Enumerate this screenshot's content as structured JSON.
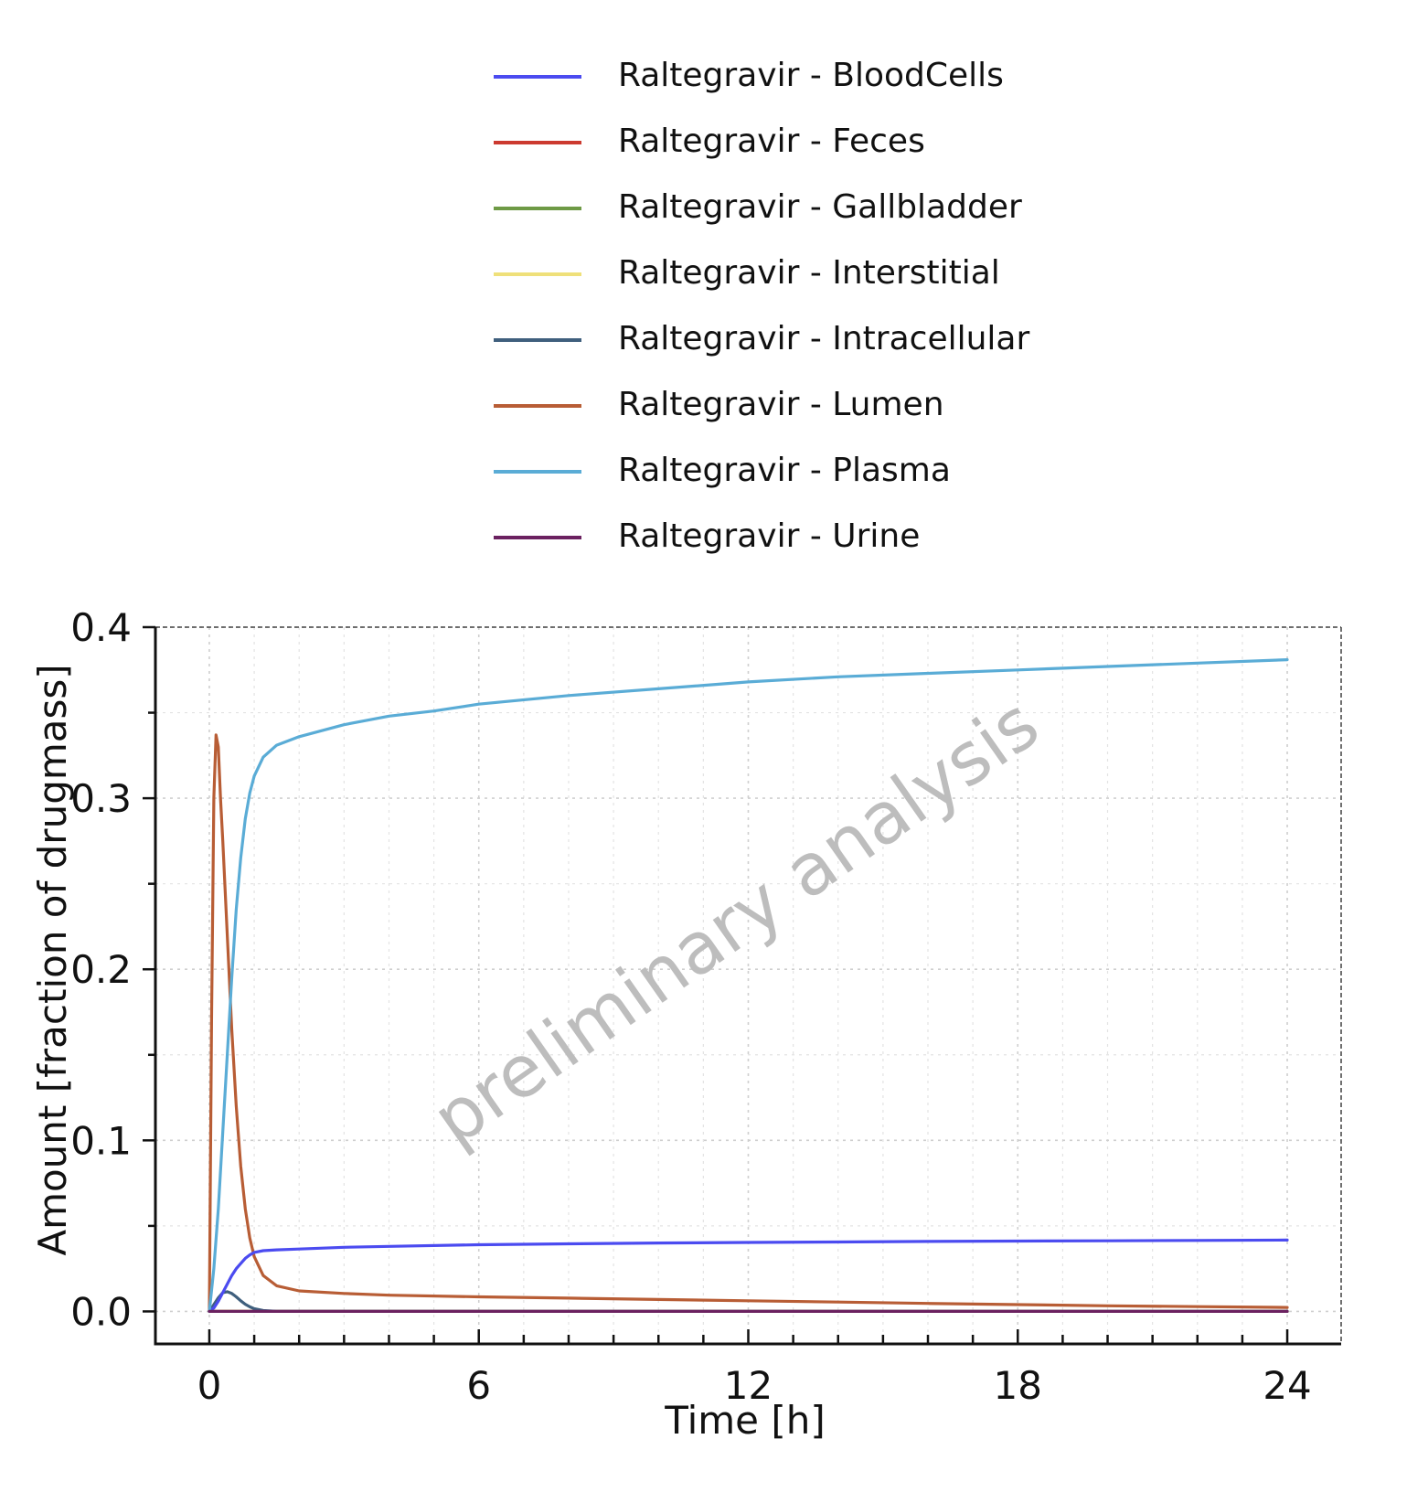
{
  "watermark": "preliminary analysis",
  "chart_data": {
    "type": "line",
    "xlabel": "Time [h]",
    "ylabel": "Amount [fraction of drugmass]",
    "xlim": [
      -1.2,
      25.2
    ],
    "ylim": [
      -0.019,
      0.4
    ],
    "xticks": [
      0,
      6,
      12,
      18,
      24
    ],
    "yticks": [
      0.0,
      0.1,
      0.2,
      0.3,
      0.4
    ],
    "grid": true,
    "legend_position": "top",
    "series": [
      {
        "name": "Raltegravir - BloodCells",
        "color": "#4b4bf0",
        "x": [
          0,
          0.1,
          0.2,
          0.3,
          0.4,
          0.5,
          0.6,
          0.7,
          0.8,
          0.9,
          1.0,
          1.2,
          1.5,
          2,
          3,
          4,
          6,
          8,
          10,
          12,
          14,
          16,
          18,
          20,
          22,
          24
        ],
        "y": [
          0,
          0.002,
          0.006,
          0.011,
          0.016,
          0.021,
          0.025,
          0.028,
          0.031,
          0.033,
          0.0345,
          0.0355,
          0.036,
          0.0365,
          0.0375,
          0.038,
          0.039,
          0.0395,
          0.04,
          0.0403,
          0.0406,
          0.0409,
          0.0411,
          0.0413,
          0.0415,
          0.0417
        ]
      },
      {
        "name": "Raltegravir - Feces",
        "color": "#cc3a30",
        "x": [
          0,
          24
        ],
        "y": [
          0,
          0
        ]
      },
      {
        "name": "Raltegravir - Gallbladder",
        "color": "#6e9a45",
        "x": [
          0,
          24
        ],
        "y": [
          0,
          0
        ]
      },
      {
        "name": "Raltegravir - Interstitial",
        "color": "#efe07a",
        "x": [
          0,
          24
        ],
        "y": [
          0,
          0
        ]
      },
      {
        "name": "Raltegravir - Intracellular",
        "color": "#3f5f7d",
        "x": [
          0,
          0.1,
          0.2,
          0.3,
          0.4,
          0.5,
          0.6,
          0.7,
          0.8,
          0.9,
          1.0,
          1.2,
          1.5,
          2,
          24
        ],
        "y": [
          0,
          0.004,
          0.008,
          0.011,
          0.0115,
          0.0105,
          0.0085,
          0.0062,
          0.0042,
          0.0027,
          0.0016,
          0.0005,
          0.0001,
          0,
          0
        ]
      },
      {
        "name": "Raltegravir - Lumen",
        "color": "#b85d35",
        "x": [
          0,
          0.05,
          0.1,
          0.15,
          0.2,
          0.25,
          0.3,
          0.4,
          0.5,
          0.6,
          0.7,
          0.8,
          0.9,
          1.0,
          1.2,
          1.5,
          2,
          3,
          4,
          6,
          8,
          10,
          12,
          14,
          16,
          18,
          20,
          22,
          24
        ],
        "y": [
          0,
          0.17,
          0.3,
          0.337,
          0.33,
          0.3,
          0.275,
          0.22,
          0.165,
          0.12,
          0.085,
          0.06,
          0.043,
          0.032,
          0.021,
          0.015,
          0.012,
          0.0105,
          0.0095,
          0.0085,
          0.0078,
          0.007,
          0.0062,
          0.0055,
          0.0047,
          0.004,
          0.0033,
          0.0028,
          0.0023
        ]
      },
      {
        "name": "Raltegravir - Plasma",
        "color": "#5aacd6",
        "x": [
          0,
          0.1,
          0.2,
          0.3,
          0.4,
          0.5,
          0.6,
          0.7,
          0.8,
          0.9,
          1.0,
          1.2,
          1.5,
          2,
          3,
          4,
          5,
          6,
          8,
          10,
          12,
          14,
          16,
          18,
          20,
          22,
          24
        ],
        "y": [
          0,
          0.025,
          0.06,
          0.105,
          0.15,
          0.195,
          0.235,
          0.265,
          0.288,
          0.303,
          0.313,
          0.324,
          0.331,
          0.336,
          0.343,
          0.348,
          0.351,
          0.355,
          0.36,
          0.364,
          0.368,
          0.371,
          0.373,
          0.375,
          0.377,
          0.379,
          0.381
        ]
      },
      {
        "name": "Raltegravir - Urine",
        "color": "#6b2160",
        "x": [
          0,
          24
        ],
        "y": [
          0,
          0
        ]
      }
    ]
  }
}
